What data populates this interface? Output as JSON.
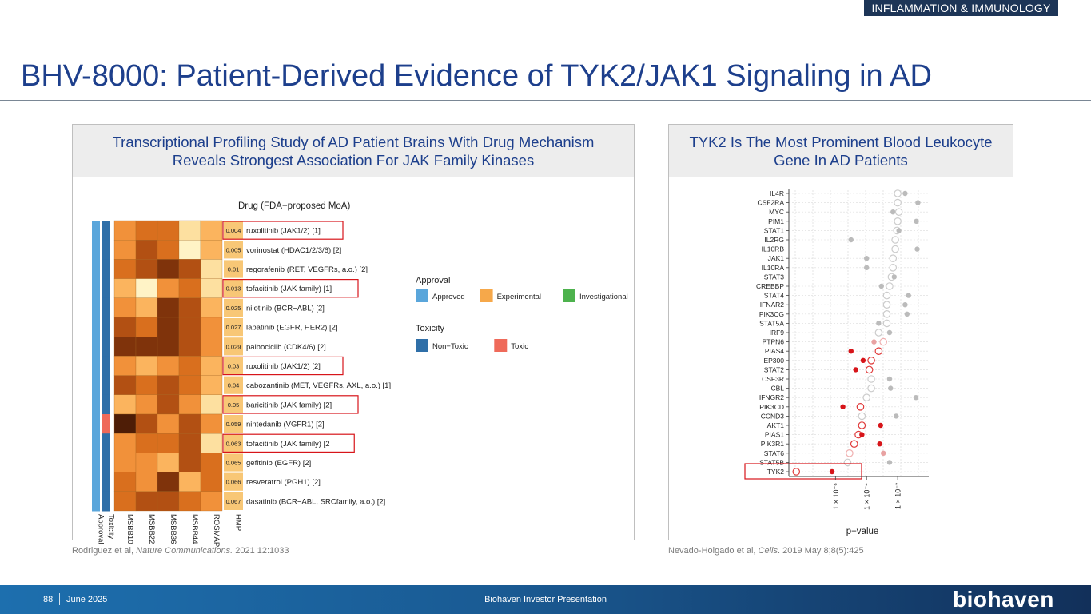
{
  "header": {
    "tag": "INFLAMMATION & IMMUNOLOGY",
    "title": "BHV-8000: Patient-Derived Evidence of TYK2/JAK1 Signaling in AD"
  },
  "left_panel": {
    "heading_line1": "Transcriptional Profiling Study of AD Patient Brains With Drug Mechanism",
    "heading_line2": "Reveals Strongest Association For JAK Family Kinases",
    "citation_prefix": "Rodriguez et al, ",
    "citation_journal": "Nature Communications.",
    "citation_suffix": " 2021 12:1033"
  },
  "right_panel": {
    "heading_line1": "TYK2 Is The Most Prominent Blood Leukocyte",
    "heading_line2": "Gene In AD Patients",
    "citation_prefix": "Nevado-Holgado et al, ",
    "citation_journal": "Cells",
    "citation_suffix": ". 2019 May 8;8(5):425"
  },
  "chart_data": [
    {
      "type": "heatmap",
      "title": "Drug (FDA−proposed MoA)",
      "columns": [
        "Approval",
        "Toxicity",
        "MSBB10",
        "MSBB22",
        "MSBB36",
        "MSBB44",
        "ROSMAP",
        "HMP"
      ],
      "rows": [
        {
          "hmp": "0.004",
          "drug": "ruxolitinib (JAK1/2) [1]",
          "highlight": true,
          "toxic": false,
          "shades": [
            3,
            4,
            4,
            1,
            2
          ]
        },
        {
          "hmp": "0.005",
          "drug": "vorinostat (HDAC1/2/3/6) [2]",
          "highlight": false,
          "toxic": false,
          "shades": [
            3,
            5,
            4,
            0,
            2
          ]
        },
        {
          "hmp": "0.01",
          "drug": "regorafenib (RET, VEGFRs, a.o.) [2]",
          "highlight": false,
          "toxic": false,
          "shades": [
            4,
            5,
            6,
            5,
            1
          ]
        },
        {
          "hmp": "0.013",
          "drug": "tofacitinib (JAK family) [1]",
          "highlight": true,
          "toxic": false,
          "shades": [
            2,
            0,
            3,
            4,
            1
          ]
        },
        {
          "hmp": "0.025",
          "drug": "nilotinib (BCR−ABL) [2]",
          "highlight": false,
          "toxic": false,
          "shades": [
            3,
            2,
            6,
            5,
            2
          ]
        },
        {
          "hmp": "0.027",
          "drug": "lapatinib (EGFR, HER2) [2]",
          "highlight": false,
          "toxic": false,
          "shades": [
            5,
            4,
            6,
            5,
            3
          ]
        },
        {
          "hmp": "0.029",
          "drug": "palbociclib (CDK4/6) [2]",
          "highlight": false,
          "toxic": false,
          "shades": [
            6,
            6,
            6,
            5,
            3
          ]
        },
        {
          "hmp": "0.03",
          "drug": "ruxolitinib (JAK1/2) [2]",
          "highlight": true,
          "toxic": false,
          "shades": [
            3,
            2,
            3,
            4,
            2
          ]
        },
        {
          "hmp": "0.04",
          "drug": "cabozantinib (MET, VEGFRs, AXL, a.o.) [1]",
          "highlight": false,
          "toxic": false,
          "shades": [
            5,
            4,
            5,
            4,
            2
          ]
        },
        {
          "hmp": "0.05",
          "drug": "baricitinib (JAK family) [2]",
          "highlight": true,
          "toxic": false,
          "shades": [
            2,
            3,
            5,
            3,
            1
          ]
        },
        {
          "hmp": "0.059",
          "drug": "nintedanib (VGFR1) [2]",
          "highlight": false,
          "toxic": true,
          "shades": [
            7,
            5,
            3,
            5,
            3
          ]
        },
        {
          "hmp": "0.063",
          "drug": "tofacitinib (JAK family) [2",
          "highlight": true,
          "toxic": false,
          "shades": [
            3,
            4,
            4,
            5,
            1
          ]
        },
        {
          "hmp": "0.065",
          "drug": "gefitinib (EGFR) [2]",
          "highlight": false,
          "toxic": false,
          "shades": [
            3,
            3,
            2,
            5,
            4
          ]
        },
        {
          "hmp": "0.066",
          "drug": "resveratrol (PGH1) [2]",
          "highlight": false,
          "toxic": false,
          "shades": [
            4,
            3,
            6,
            2,
            4
          ]
        },
        {
          "hmp": "0.067",
          "drug": "dasatinib (BCR−ABL, SRCfamily, a.o.) [2]",
          "highlight": false,
          "toxic": false,
          "shades": [
            4,
            5,
            5,
            4,
            3
          ]
        }
      ],
      "legend": {
        "approval_title": "Approval",
        "approval_items": [
          {
            "label": "Approved",
            "color": "#5aa6db"
          },
          {
            "label": "Experimental",
            "color": "#f6a84a"
          },
          {
            "label": "Investigational",
            "color": "#4db24d"
          }
        ],
        "toxicity_title": "Toxicity",
        "toxicity_items": [
          {
            "label": "Non−Toxic",
            "color": "#2f6fa8"
          },
          {
            "label": "Toxic",
            "color": "#ef6a5a"
          }
        ]
      },
      "colors": {
        "approved": "#5aa6db",
        "nontoxic": "#2f6fa8",
        "toxic": "#ef6a5a",
        "hmp": "#f8c776",
        "highlight_box": "#d7151a",
        "shades": [
          "#fff3c6",
          "#fde0a0",
          "#fbb45e",
          "#f1913a",
          "#d96f1e",
          "#b25013",
          "#7f330b",
          "#4e1d06"
        ]
      }
    },
    {
      "type": "scatter",
      "xlabel": "p−value",
      "xscale": "log",
      "x_ticks": [
        "1 × 10⁻⁶",
        "1 × 10⁻⁴",
        "1 × 10⁻²"
      ],
      "x_tick_values": [
        1e-06,
        0.0001,
        0.01
      ],
      "xlim": [
        1e-09,
        1
      ],
      "grid": true,
      "highlight_gene": "TYK2",
      "genes": [
        {
          "gene": "IL4R",
          "points": [
            {
              "p": 0.01,
              "kind": "hollow",
              "color": "#cccccc"
            },
            {
              "p": 0.03,
              "kind": "filled",
              "color": "#bbbbbb"
            }
          ]
        },
        {
          "gene": "CSF2RA",
          "points": [
            {
              "p": 0.01,
              "kind": "hollow",
              "color": "#cccccc"
            },
            {
              "p": 0.2,
              "kind": "filled",
              "color": "#bbbbbb"
            }
          ]
        },
        {
          "gene": "MYC",
          "points": [
            {
              "p": 0.005,
              "kind": "filled",
              "color": "#bbbbbb"
            },
            {
              "p": 0.012,
              "kind": "hollow",
              "color": "#cccccc"
            }
          ]
        },
        {
          "gene": "PIM1",
          "points": [
            {
              "p": 0.01,
              "kind": "hollow",
              "color": "#cccccc"
            },
            {
              "p": 0.16,
              "kind": "filled",
              "color": "#bbbbbb"
            }
          ]
        },
        {
          "gene": "STAT1",
          "points": [
            {
              "p": 0.009,
              "kind": "hollow",
              "color": "#cccccc"
            },
            {
              "p": 0.012,
              "kind": "filled",
              "color": "#bbbbbb"
            }
          ]
        },
        {
          "gene": "IL2RG",
          "points": [
            {
              "p": 1e-05,
              "kind": "filled",
              "color": "#bbbbbb"
            },
            {
              "p": 0.007,
              "kind": "hollow",
              "color": "#cccccc"
            }
          ]
        },
        {
          "gene": "IL10RB",
          "points": [
            {
              "p": 0.007,
              "kind": "hollow",
              "color": "#cccccc"
            },
            {
              "p": 0.18,
              "kind": "filled",
              "color": "#bbbbbb"
            }
          ]
        },
        {
          "gene": "JAK1",
          "points": [
            {
              "p": 0.0001,
              "kind": "filled",
              "color": "#bbbbbb"
            },
            {
              "p": 0.005,
              "kind": "hollow",
              "color": "#cccccc"
            }
          ]
        },
        {
          "gene": "IL10RA",
          "points": [
            {
              "p": 0.0001,
              "kind": "filled",
              "color": "#bbbbbb"
            },
            {
              "p": 0.005,
              "kind": "hollow",
              "color": "#cccccc"
            }
          ]
        },
        {
          "gene": "STAT3",
          "points": [
            {
              "p": 0.004,
              "kind": "hollow",
              "color": "#cccccc"
            },
            {
              "p": 0.006,
              "kind": "filled",
              "color": "#bbbbbb"
            }
          ]
        },
        {
          "gene": "CREBBP",
          "points": [
            {
              "p": 0.0009,
              "kind": "filled",
              "color": "#bbbbbb"
            },
            {
              "p": 0.003,
              "kind": "hollow",
              "color": "#cccccc"
            }
          ]
        },
        {
          "gene": "STAT4",
          "points": [
            {
              "p": 0.002,
              "kind": "hollow",
              "color": "#cccccc"
            },
            {
              "p": 0.05,
              "kind": "filled",
              "color": "#bbbbbb"
            }
          ]
        },
        {
          "gene": "IFNAR2",
          "points": [
            {
              "p": 0.002,
              "kind": "hollow",
              "color": "#cccccc"
            },
            {
              "p": 0.03,
              "kind": "filled",
              "color": "#bbbbbb"
            }
          ]
        },
        {
          "gene": "PIK3CG",
          "points": [
            {
              "p": 0.002,
              "kind": "hollow",
              "color": "#cccccc"
            },
            {
              "p": 0.04,
              "kind": "filled",
              "color": "#bbbbbb"
            }
          ]
        },
        {
          "gene": "STAT5A",
          "points": [
            {
              "p": 0.0006,
              "kind": "filled",
              "color": "#bbbbbb"
            },
            {
              "p": 0.002,
              "kind": "hollow",
              "color": "#cccccc"
            }
          ]
        },
        {
          "gene": "IRF9",
          "points": [
            {
              "p": 0.0006,
              "kind": "hollow",
              "color": "#cccccc"
            },
            {
              "p": 0.003,
              "kind": "filled",
              "color": "#bbbbbb"
            }
          ]
        },
        {
          "gene": "PTPN6",
          "points": [
            {
              "p": 0.0003,
              "kind": "filled",
              "color": "#e8a2a2"
            },
            {
              "p": 0.0012,
              "kind": "hollow",
              "color": "#f0b0b0"
            }
          ]
        },
        {
          "gene": "PIAS4",
          "points": [
            {
              "p": 1e-05,
              "kind": "filled",
              "color": "#d7151a"
            },
            {
              "p": 0.0006,
              "kind": "hollow",
              "color": "#e03a3a"
            }
          ]
        },
        {
          "gene": "EP300",
          "points": [
            {
              "p": 6e-05,
              "kind": "filled",
              "color": "#d7151a"
            },
            {
              "p": 0.0002,
              "kind": "hollow",
              "color": "#e03a3a"
            }
          ]
        },
        {
          "gene": "STAT2",
          "points": [
            {
              "p": 2e-05,
              "kind": "filled",
              "color": "#d7151a"
            },
            {
              "p": 0.00015,
              "kind": "hollow",
              "color": "#e03a3a"
            }
          ]
        },
        {
          "gene": "CSF3R",
          "points": [
            {
              "p": 0.0002,
              "kind": "hollow",
              "color": "#cccccc"
            },
            {
              "p": 0.003,
              "kind": "filled",
              "color": "#bbbbbb"
            }
          ]
        },
        {
          "gene": "CBL",
          "points": [
            {
              "p": 0.0002,
              "kind": "hollow",
              "color": "#cccccc"
            },
            {
              "p": 0.0035,
              "kind": "filled",
              "color": "#bbbbbb"
            }
          ]
        },
        {
          "gene": "IFNGR2",
          "points": [
            {
              "p": 0.0001,
              "kind": "hollow",
              "color": "#cccccc"
            },
            {
              "p": 0.15,
              "kind": "filled",
              "color": "#bbbbbb"
            }
          ]
        },
        {
          "gene": "PIK3CD",
          "points": [
            {
              "p": 3e-06,
              "kind": "filled",
              "color": "#d7151a"
            },
            {
              "p": 4e-05,
              "kind": "hollow",
              "color": "#e03a3a"
            }
          ]
        },
        {
          "gene": "CCND3",
          "points": [
            {
              "p": 5e-05,
              "kind": "hollow",
              "color": "#cccccc"
            },
            {
              "p": 0.008,
              "kind": "filled",
              "color": "#bbbbbb"
            }
          ]
        },
        {
          "gene": "AKT1",
          "points": [
            {
              "p": 5e-05,
              "kind": "hollow",
              "color": "#e03a3a"
            },
            {
              "p": 0.0008,
              "kind": "filled",
              "color": "#d7151a"
            }
          ]
        },
        {
          "gene": "PIAS1",
          "points": [
            {
              "p": 3e-05,
              "kind": "hollow",
              "color": "#e03a3a"
            },
            {
              "p": 5e-05,
              "kind": "filled",
              "color": "#d7151a"
            }
          ]
        },
        {
          "gene": "PIK3R1",
          "points": [
            {
              "p": 1.6e-05,
              "kind": "hollow",
              "color": "#e03a3a"
            },
            {
              "p": 0.0007,
              "kind": "filled",
              "color": "#d7151a"
            }
          ]
        },
        {
          "gene": "STAT6",
          "points": [
            {
              "p": 8e-06,
              "kind": "hollow",
              "color": "#f0b0b0"
            },
            {
              "p": 0.0012,
              "kind": "filled",
              "color": "#e8a2a2"
            }
          ]
        },
        {
          "gene": "STAT5B",
          "points": [
            {
              "p": 6e-06,
              "kind": "hollow",
              "color": "#cccccc"
            },
            {
              "p": 0.003,
              "kind": "filled",
              "color": "#bbbbbb"
            }
          ]
        },
        {
          "gene": "TYK2",
          "points": [
            {
              "p": 3e-09,
              "kind": "hollow",
              "color": "#e03a3a"
            },
            {
              "p": 6e-07,
              "kind": "filled",
              "color": "#d7151a"
            }
          ]
        }
      ]
    }
  ],
  "footer": {
    "page": "88",
    "date": "June 2025",
    "center": "Biohaven Investor Presentation",
    "logo": "biohaven"
  }
}
